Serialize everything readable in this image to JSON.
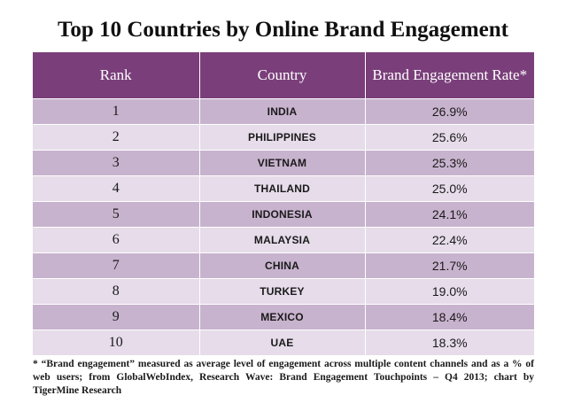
{
  "chart_data": {
    "type": "table",
    "title": "Top 10 Countries by Online Brand Engagement",
    "columns": [
      "Rank",
      "Country",
      "Brand Engagement Rate*"
    ],
    "rows": [
      {
        "rank": "1",
        "country": "INDIA",
        "rate": "26.9%"
      },
      {
        "rank": "2",
        "country": "PHILIPPINES",
        "rate": "25.6%"
      },
      {
        "rank": "3",
        "country": "VIETNAM",
        "rate": "25.3%"
      },
      {
        "rank": "4",
        "country": "THAILAND",
        "rate": "25.0%"
      },
      {
        "rank": "5",
        "country": "INDONESIA",
        "rate": "24.1%"
      },
      {
        "rank": "6",
        "country": "MALAYSIA",
        "rate": "22.4%"
      },
      {
        "rank": "7",
        "country": "CHINA",
        "rate": "21.7%"
      },
      {
        "rank": "8",
        "country": "TURKEY",
        "rate": "19.0%"
      },
      {
        "rank": "9",
        "country": "MEXICO",
        "rate": "18.4%"
      },
      {
        "rank": "10",
        "country": "UAE",
        "rate": "18.3%"
      }
    ],
    "footnote": "* “Brand engagement” measured as average level of engagement across multiple content channels and as a % of web users; from GlobalWebIndex, Research Wave: Brand Engagement Touchpoints – Q4 2013; chart by TigerMine Research"
  },
  "colors": {
    "header_background": "#7a3f7a",
    "header_text": "#ffffff",
    "row_dark": "#c8b3ce",
    "row_light": "#e6dcea",
    "cell_border": "#ffffff"
  }
}
